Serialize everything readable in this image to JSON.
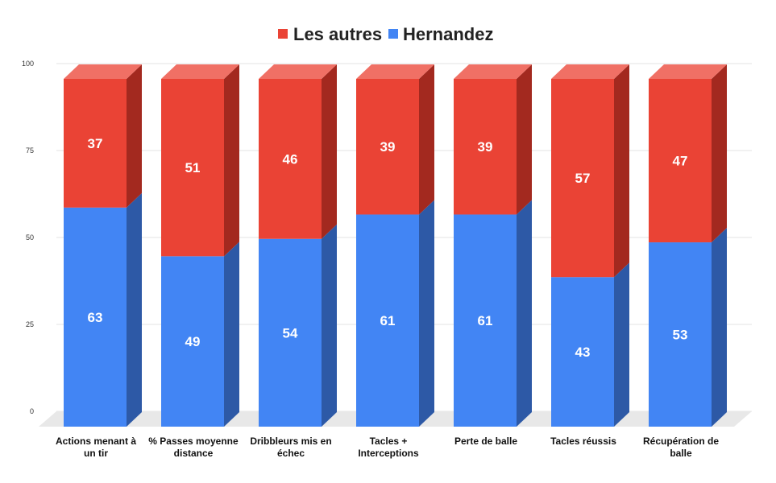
{
  "chart_data": {
    "type": "bar",
    "stacked": true,
    "style": "3d",
    "categories": [
      [
        "Actions menant à",
        "un tir"
      ],
      [
        "% Passes moyenne",
        "distance"
      ],
      [
        "Dribbleurs mis en",
        "échec"
      ],
      [
        "Tacles +",
        "Interceptions"
      ],
      [
        "Perte de balle"
      ],
      [
        "Tacles réussis"
      ],
      [
        "Récupération de",
        "balle"
      ]
    ],
    "series": [
      {
        "name": "Hernandez",
        "color": "#4285f4",
        "side_color": "#2d59a6",
        "values": [
          63,
          49,
          54,
          61,
          61,
          43,
          53
        ]
      },
      {
        "name": "Les autres",
        "color": "#ea4335",
        "side_color": "#a3291f",
        "top_color": "#f07065",
        "values": [
          37,
          51,
          46,
          39,
          39,
          57,
          47
        ]
      }
    ],
    "legend_order": [
      "Les autres",
      "Hernandez"
    ],
    "legend_position": "top",
    "yticks": [
      "0",
      "25",
      "50",
      "75",
      "100"
    ],
    "ylim": [
      0,
      100
    ],
    "grid": true
  }
}
